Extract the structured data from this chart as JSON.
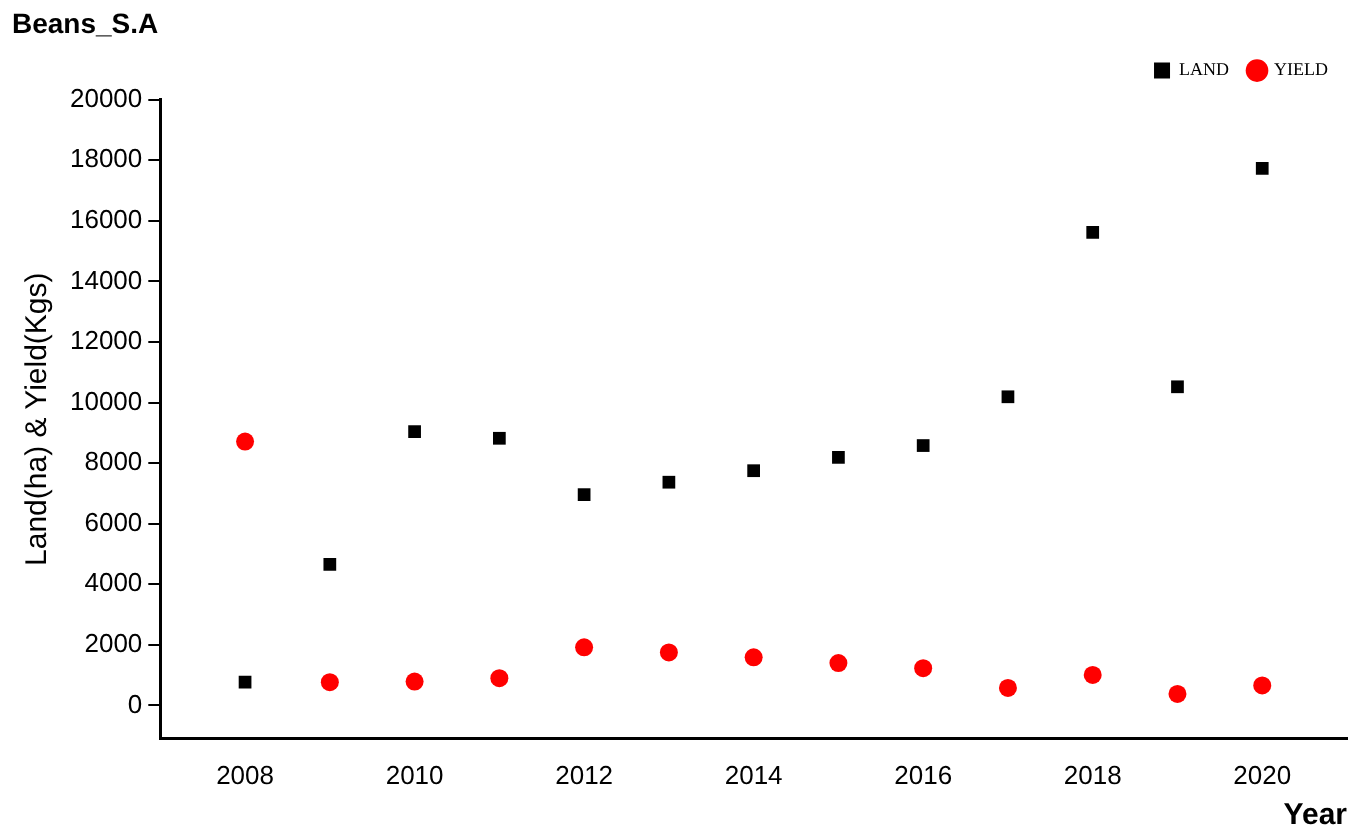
{
  "chart_data": {
    "type": "scatter",
    "title": "Beans_S.A",
    "xlabel": "Year",
    "ylabel": "Land(ha) & Yield(Kgs)",
    "x": [
      2008,
      2009,
      2010,
      2011,
      2012,
      2013,
      2014,
      2015,
      2016,
      2017,
      2018,
      2019,
      2020
    ],
    "series": [
      {
        "name": "LAND",
        "color": "#000000",
        "marker": "square",
        "values": [
          770,
          4660,
          9040,
          8820,
          6960,
          7370,
          7750,
          8190,
          8580,
          10190,
          15620,
          10520,
          17730
        ]
      },
      {
        "name": "YIELD",
        "color": "#ff0000",
        "marker": "circle",
        "values": [
          8710,
          770,
          790,
          900,
          1920,
          1750,
          1590,
          1400,
          1230,
          580,
          1010,
          380,
          660
        ]
      }
    ],
    "xlim": [
      2007,
      2021
    ],
    "xticks": [
      2008,
      2010,
      2012,
      2014,
      2016,
      2018,
      2020
    ],
    "ylim": [
      -1100,
      20000
    ],
    "yticks": [
      0,
      2000,
      4000,
      6000,
      8000,
      10000,
      12000,
      14000,
      16000,
      18000,
      20000
    ],
    "grid": false,
    "legend": "top right"
  }
}
